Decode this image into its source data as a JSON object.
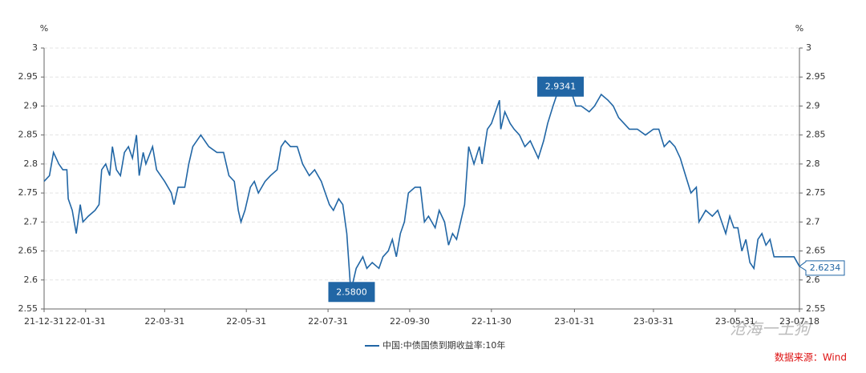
{
  "chart_data": {
    "type": "line",
    "y_unit": "%",
    "y2_unit": "%",
    "source": "数据来源：Wind",
    "watermark": "沧海一土狗",
    "x": [
      "21-12-31",
      "22-01-04",
      "22-01-07",
      "22-01-11",
      "22-01-14",
      "22-01-17",
      "22-01-18",
      "22-01-21",
      "22-01-24",
      "22-01-27",
      "22-01-29",
      "22-02-02",
      "22-02-07",
      "22-02-10",
      "22-02-12",
      "22-02-15",
      "22-02-18",
      "22-02-20",
      "22-02-23",
      "22-02-26",
      "22-03-01",
      "22-03-04",
      "22-03-07",
      "22-03-10",
      "22-03-12",
      "22-03-15",
      "22-03-17",
      "22-03-22",
      "22-03-25",
      "22-03-31",
      "22-04-05",
      "22-04-07",
      "22-04-10",
      "22-04-15",
      "22-04-18",
      "22-04-21",
      "22-04-24",
      "22-04-27",
      "22-05-03",
      "22-05-09",
      "22-05-14",
      "22-05-18",
      "22-05-22",
      "22-05-25",
      "22-05-27",
      "22-05-30",
      "22-06-03",
      "22-06-06",
      "22-06-09",
      "22-06-14",
      "22-06-18",
      "22-06-23",
      "22-06-26",
      "22-06-29",
      "22-07-03",
      "22-07-08",
      "22-07-12",
      "22-07-17",
      "22-07-21",
      "22-07-26",
      "22-07-29",
      "22-08-01",
      "22-08-04",
      "22-08-08",
      "22-08-11",
      "22-08-14",
      "22-08-17",
      "22-08-21",
      "22-08-26",
      "22-08-29",
      "22-09-02",
      "22-09-07",
      "22-09-10",
      "22-09-14",
      "22-09-17",
      "22-09-20",
      "22-09-23",
      "22-09-26",
      "22-09-29",
      "22-10-04",
      "22-10-08",
      "22-10-11",
      "22-10-14",
      "22-10-19",
      "22-10-22",
      "22-10-26",
      "22-10-29",
      "22-11-01",
      "22-11-04",
      "22-11-07",
      "22-11-10",
      "22-11-13",
      "22-11-17",
      "22-11-21",
      "22-11-23",
      "22-11-27",
      "22-11-30",
      "22-12-03",
      "22-12-06",
      "22-12-07",
      "22-12-10",
      "22-12-14",
      "22-12-17",
      "22-12-21",
      "22-12-25",
      "22-12-29",
      "23-01-02",
      "23-01-04",
      "23-01-08",
      "23-01-11",
      "23-01-15",
      "23-01-20",
      "23-01-24",
      "23-01-28",
      "23-02-01",
      "23-02-05",
      "23-02-11",
      "23-02-15",
      "23-02-20",
      "23-02-25",
      "23-03-01",
      "23-03-05",
      "23-03-09",
      "23-03-13",
      "23-03-19",
      "23-03-25",
      "23-03-31",
      "23-04-04",
      "23-04-08",
      "23-04-12",
      "23-04-16",
      "23-04-20",
      "23-04-24",
      "23-04-28",
      "23-05-02",
      "23-05-04",
      "23-05-09",
      "23-05-14",
      "23-05-18",
      "23-05-21",
      "23-05-24",
      "23-05-27",
      "23-05-30",
      "23-06-02",
      "23-06-05",
      "23-06-08",
      "23-06-11",
      "23-06-14",
      "23-06-17",
      "23-06-20",
      "23-06-23",
      "23-06-26",
      "23-06-29",
      "23-07-05",
      "23-07-11",
      "23-07-14",
      "23-07-18"
    ],
    "series": [
      {
        "name": "中国:中债国债到期收益率:10年",
        "color": "#2166a5",
        "values": [
          2.77,
          2.78,
          2.82,
          2.8,
          2.79,
          2.79,
          2.74,
          2.72,
          2.68,
          2.73,
          2.7,
          2.71,
          2.72,
          2.73,
          2.79,
          2.8,
          2.78,
          2.83,
          2.79,
          2.78,
          2.82,
          2.83,
          2.81,
          2.85,
          2.78,
          2.82,
          2.8,
          2.83,
          2.79,
          2.77,
          2.75,
          2.73,
          2.76,
          2.76,
          2.8,
          2.83,
          2.84,
          2.85,
          2.83,
          2.82,
          2.82,
          2.78,
          2.77,
          2.72,
          2.7,
          2.72,
          2.76,
          2.77,
          2.75,
          2.77,
          2.78,
          2.79,
          2.83,
          2.84,
          2.83,
          2.83,
          2.8,
          2.78,
          2.79,
          2.77,
          2.75,
          2.73,
          2.72,
          2.74,
          2.73,
          2.68,
          2.58,
          2.62,
          2.64,
          2.62,
          2.63,
          2.62,
          2.64,
          2.65,
          2.67,
          2.64,
          2.68,
          2.7,
          2.75,
          2.76,
          2.76,
          2.7,
          2.71,
          2.69,
          2.72,
          2.7,
          2.66,
          2.68,
          2.67,
          2.7,
          2.73,
          2.83,
          2.8,
          2.83,
          2.8,
          2.86,
          2.87,
          2.89,
          2.91,
          2.86,
          2.89,
          2.87,
          2.86,
          2.85,
          2.83,
          2.84,
          2.82,
          2.81,
          2.84,
          2.87,
          2.9,
          2.9341,
          2.92,
          2.93,
          2.9,
          2.9,
          2.89,
          2.9,
          2.92,
          2.91,
          2.9,
          2.88,
          2.87,
          2.86,
          2.86,
          2.85,
          2.86,
          2.86,
          2.83,
          2.84,
          2.83,
          2.81,
          2.78,
          2.75,
          2.76,
          2.7,
          2.72,
          2.71,
          2.72,
          2.7,
          2.68,
          2.71,
          2.69,
          2.69,
          2.65,
          2.67,
          2.63,
          2.62,
          2.67,
          2.68,
          2.66,
          2.67,
          2.64,
          2.64,
          2.64,
          2.64,
          2.6234
        ]
      }
    ],
    "xlim": [
      "21-12-31",
      "23-07-18"
    ],
    "xticks": [
      "21-12-31",
      "22-01-31",
      "22-03-31",
      "22-05-31",
      "22-07-31",
      "22-09-30",
      "22-11-30",
      "23-01-31",
      "23-03-31",
      "23-05-31",
      "23-07-18"
    ],
    "ylim": [
      2.55,
      3
    ],
    "yticks": [
      2.55,
      2.6,
      2.65,
      2.7,
      2.75,
      2.8,
      2.85,
      2.9,
      2.95,
      3
    ],
    "y2lim": [
      2.55,
      3
    ],
    "y2ticks": [
      2.55,
      2.6,
      2.65,
      2.7,
      2.75,
      2.8,
      2.85,
      2.9,
      2.95,
      3
    ],
    "grid": true,
    "legend": "bottom",
    "annotations": [
      {
        "x": "22-08-17",
        "value": 2.58,
        "label": "2.5800",
        "style": "box"
      },
      {
        "x": "23-01-20",
        "value": 2.9341,
        "label": "2.9341",
        "style": "box"
      },
      {
        "x": "23-07-18",
        "value": 2.6234,
        "label": "2.6234",
        "style": "callout"
      }
    ]
  }
}
